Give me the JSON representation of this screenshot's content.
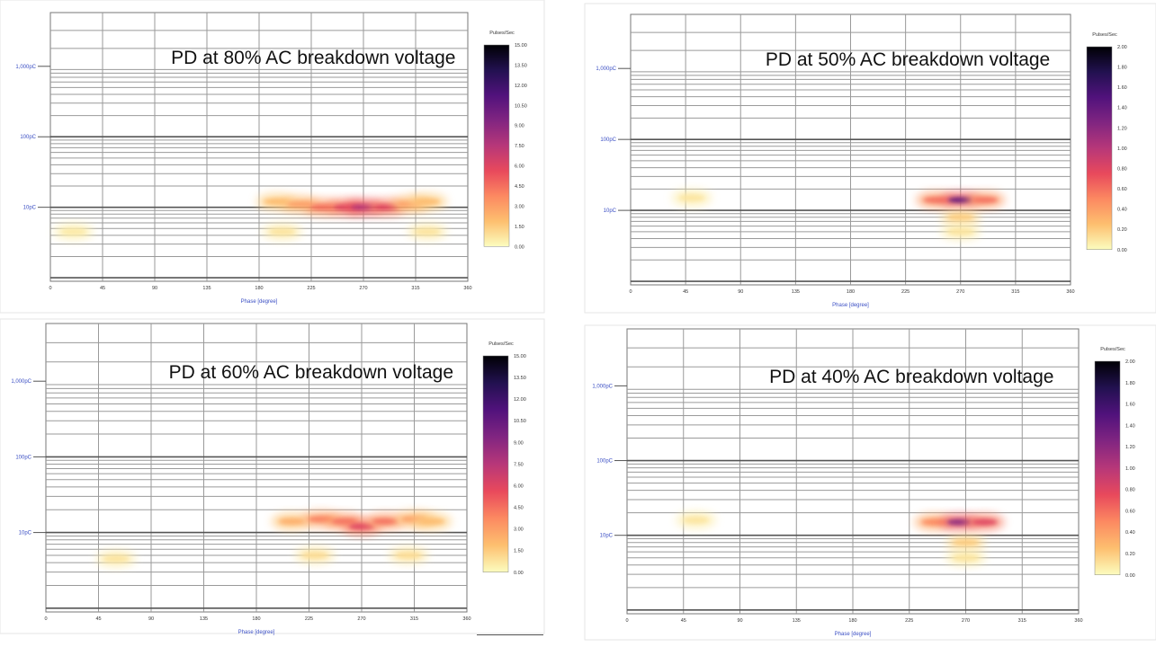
{
  "chart_data": [
    {
      "type": "heatmap",
      "title": "PD at 80% AC breakdown voltage",
      "xlabel": "Phase [degree]",
      "ylabel": "",
      "x_ticks": [
        "0",
        "45",
        "90",
        "135",
        "180",
        "225",
        "270",
        "315",
        "360"
      ],
      "y_ticks": [
        "1,000pC",
        "100pC",
        "10pC"
      ],
      "y_scale": "log",
      "xlim": [
        0,
        360
      ],
      "colorbar": {
        "title": "Pulses/Sec",
        "min": 0,
        "max": 15,
        "ticks": [
          "15.00",
          "13.50",
          "12.00",
          "10.50",
          "9.00",
          "7.50",
          "6.00",
          "4.50",
          "3.00",
          "1.50",
          "0.00"
        ]
      },
      "pattern": [
        {
          "phase": 195,
          "charge_pC": 12,
          "intensity": 2.0
        },
        {
          "phase": 215,
          "charge_pC": 11,
          "intensity": 3.0
        },
        {
          "phase": 235,
          "charge_pC": 10,
          "intensity": 4.5
        },
        {
          "phase": 255,
          "charge_pC": 10,
          "intensity": 6.0
        },
        {
          "phase": 270,
          "charge_pC": 10,
          "intensity": 7.5
        },
        {
          "phase": 290,
          "charge_pC": 10,
          "intensity": 6.0
        },
        {
          "phase": 310,
          "charge_pC": 11,
          "intensity": 3.0
        },
        {
          "phase": 325,
          "charge_pC": 12,
          "intensity": 2.0
        },
        {
          "phase": 200,
          "charge_pC": 4.5,
          "intensity": 0.8
        },
        {
          "phase": 325,
          "charge_pC": 4.5,
          "intensity": 0.8
        },
        {
          "phase": 20,
          "charge_pC": 4.5,
          "intensity": 0.6
        }
      ]
    },
    {
      "type": "heatmap",
      "title": "PD at 50% AC breakdown voltage",
      "xlabel": "Phase [degree]",
      "ylabel": "",
      "x_ticks": [
        "0",
        "45",
        "90",
        "135",
        "180",
        "225",
        "270",
        "315",
        "360"
      ],
      "y_ticks": [
        "1,000pC",
        "100pC",
        "10pC"
      ],
      "y_scale": "log",
      "xlim": [
        0,
        360
      ],
      "colorbar": {
        "title": "Pulses/Sec",
        "min": 0,
        "max": 2,
        "ticks": [
          "2.00",
          "1.80",
          "1.60",
          "1.40",
          "1.20",
          "1.00",
          "0.80",
          "0.60",
          "0.40",
          "0.20",
          "0.00"
        ]
      },
      "pattern": [
        {
          "phase": 250,
          "charge_pC": 14,
          "intensity": 0.6
        },
        {
          "phase": 270,
          "charge_pC": 14,
          "intensity": 1.4
        },
        {
          "phase": 290,
          "charge_pC": 14,
          "intensity": 0.6
        },
        {
          "phase": 270,
          "charge_pC": 8,
          "intensity": 0.2
        },
        {
          "phase": 270,
          "charge_pC": 5,
          "intensity": 0.1
        },
        {
          "phase": 50,
          "charge_pC": 15,
          "intensity": 0.1
        }
      ]
    },
    {
      "type": "heatmap",
      "title": "PD at 60% AC breakdown voltage",
      "xlabel": "Phase [degree]",
      "ylabel": "",
      "x_ticks": [
        "0",
        "45",
        "90",
        "135",
        "180",
        "225",
        "270",
        "315",
        "360"
      ],
      "y_ticks": [
        "1,000pC",
        "100pC",
        "10pC"
      ],
      "y_scale": "log",
      "xlim": [
        0,
        360
      ],
      "colorbar": {
        "title": "Pulses/Sec",
        "min": 0,
        "max": 15,
        "ticks": [
          "15.00",
          "13.50",
          "12.00",
          "10.50",
          "9.00",
          "7.50",
          "6.00",
          "4.50",
          "3.00",
          "1.50",
          "0.00"
        ]
      },
      "pattern": [
        {
          "phase": 210,
          "charge_pC": 14,
          "intensity": 2.5
        },
        {
          "phase": 235,
          "charge_pC": 15,
          "intensity": 4.0
        },
        {
          "phase": 255,
          "charge_pC": 14,
          "intensity": 4.5
        },
        {
          "phase": 270,
          "charge_pC": 12,
          "intensity": 6.0
        },
        {
          "phase": 290,
          "charge_pC": 14,
          "intensity": 4.5
        },
        {
          "phase": 315,
          "charge_pC": 15,
          "intensity": 3.0
        },
        {
          "phase": 330,
          "charge_pC": 14,
          "intensity": 2.0
        },
        {
          "phase": 230,
          "charge_pC": 5,
          "intensity": 1.0
        },
        {
          "phase": 310,
          "charge_pC": 5,
          "intensity": 1.0
        },
        {
          "phase": 60,
          "charge_pC": 4.5,
          "intensity": 0.8
        }
      ]
    },
    {
      "type": "heatmap",
      "title": "PD at 40% AC breakdown voltage",
      "xlabel": "Phase [degree]",
      "ylabel": "",
      "x_ticks": [
        "0",
        "45",
        "90",
        "135",
        "180",
        "225",
        "270",
        "315",
        "360"
      ],
      "y_ticks": [
        "1,000pC",
        "100pC",
        "10pC"
      ],
      "y_scale": "log",
      "xlim": [
        0,
        360
      ],
      "colorbar": {
        "title": "Pulses/Sec",
        "min": 0,
        "max": 2,
        "ticks": [
          "2.00",
          "1.80",
          "1.60",
          "1.40",
          "1.20",
          "1.00",
          "0.80",
          "0.60",
          "0.40",
          "0.20",
          "0.00"
        ]
      },
      "pattern": [
        {
          "phase": 245,
          "charge_pC": 15,
          "intensity": 0.5
        },
        {
          "phase": 265,
          "charge_pC": 15,
          "intensity": 1.2
        },
        {
          "phase": 285,
          "charge_pC": 15,
          "intensity": 0.8
        },
        {
          "phase": 270,
          "charge_pC": 8,
          "intensity": 0.2
        },
        {
          "phase": 270,
          "charge_pC": 5,
          "intensity": 0.1
        },
        {
          "phase": 55,
          "charge_pC": 16,
          "intensity": 0.1
        }
      ]
    }
  ],
  "colors": {
    "grid": "#9a9a9a",
    "gridDark": "#777777",
    "axisLabel": "#3b4fc4",
    "title": "#111111",
    "colormap": [
      "#fcfdbf",
      "#fdbf6f",
      "#fc8961",
      "#e8495c",
      "#b73779",
      "#812581",
      "#51127c",
      "#221150",
      "#000004"
    ]
  }
}
